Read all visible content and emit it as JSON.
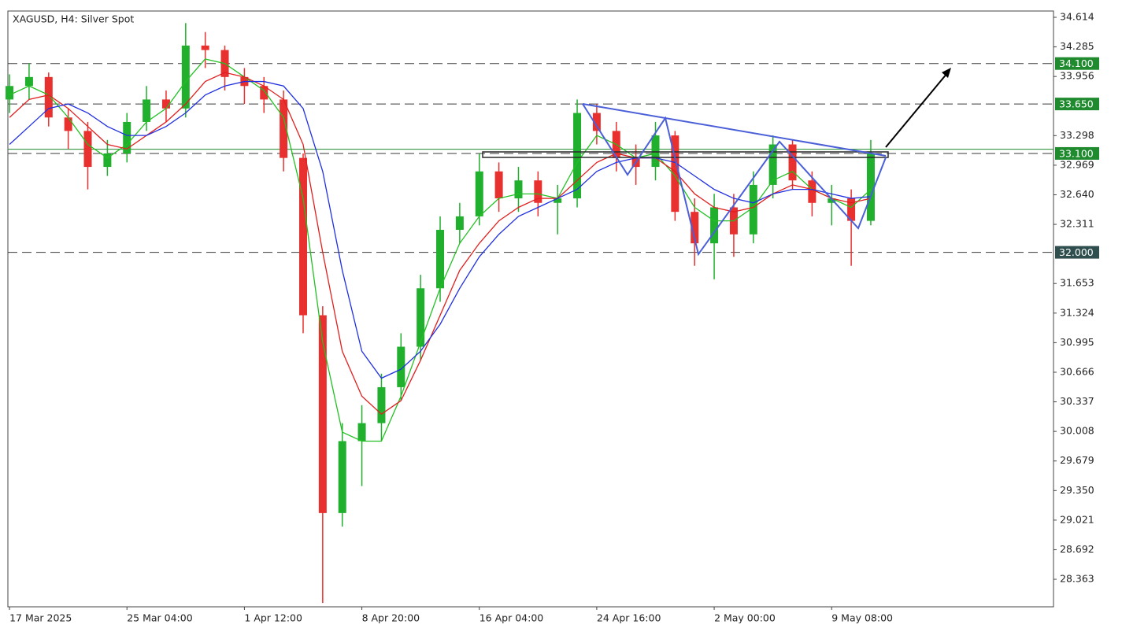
{
  "chart_data": {
    "type": "candlestick",
    "title": "XAGUSD, H4:  Silver Spot",
    "xlim": [
      -0.5,
      320
    ],
    "ylim": [
      28.057,
      34.684
    ],
    "xticks": [
      {
        "value": 0,
        "label": "17 Mar 2025"
      },
      {
        "value": 36,
        "label": "25 Mar 04:00"
      },
      {
        "value": 72,
        "label": "1 Apr 12:00"
      },
      {
        "value": 108,
        "label": "8 Apr 20:00"
      },
      {
        "value": 144,
        "label": "16 Apr 04:00"
      },
      {
        "value": 180,
        "label": "24 Apr 16:00"
      },
      {
        "value": 216,
        "label": "2 May 00:00"
      },
      {
        "value": 252,
        "label": "9 May 08:00"
      }
    ],
    "yticks": [
      34.614,
      34.285,
      33.956,
      33.298,
      32.969,
      {
        "value": 32.64,
        "label": "32.640"
      },
      32.311,
      31.653,
      31.324,
      30.995,
      30.666,
      30.337,
      30.008,
      29.679,
      {
        "value": 29.35,
        "label": "29.350"
      },
      29.021,
      28.692,
      28.363
    ],
    "levels": [
      {
        "value": 34.1,
        "label": "34.100",
        "color": "#1f8a2e"
      },
      {
        "value": 33.65,
        "label": "33.650",
        "color": "#1f8a2e"
      },
      {
        "value": 33.1,
        "label": "33.100",
        "color": "#1f8a2e"
      },
      {
        "value": 32,
        "label": "32.000",
        "color": "#2f4f4f"
      }
    ],
    "price_line": 33.146,
    "up_color": "#21b02e",
    "down_color": "#e8302e",
    "x": [
      0,
      6,
      12,
      18,
      24,
      30,
      36,
      42,
      48,
      54,
      60,
      66,
      72,
      78,
      84,
      90,
      96,
      102,
      108,
      114,
      120,
      126,
      132,
      138,
      144,
      150,
      156,
      162,
      168,
      174,
      180,
      186,
      192,
      198,
      204,
      210,
      216,
      222,
      228,
      234,
      240,
      246,
      252,
      258,
      264
    ],
    "open": [
      33.7,
      33.85,
      33.95,
      33.5,
      33.35,
      32.95,
      33.1,
      33.45,
      33.7,
      33.6,
      34.3,
      34.25,
      33.95,
      33.85,
      33.7,
      33.05,
      31.3,
      29.1,
      29.9,
      30.1,
      30.5,
      30.95,
      31.6,
      32.25,
      32.4,
      32.9,
      32.6,
      32.8,
      32.55,
      32.6,
      33.55,
      33.35,
      33.05,
      32.95,
      33.3,
      32.45,
      32.1,
      32.5,
      32.2,
      32.75,
      33.2,
      32.8,
      32.55,
      32.6,
      32.35
    ],
    "high": [
      33.98,
      34.1,
      34.0,
      33.6,
      33.45,
      33.25,
      33.55,
      33.85,
      33.8,
      34.55,
      34.45,
      34.3,
      34.05,
      33.95,
      33.8,
      33.1,
      31.4,
      30.1,
      30.3,
      30.65,
      31.1,
      31.75,
      32.4,
      32.55,
      33.1,
      33.0,
      32.95,
      32.9,
      32.75,
      33.7,
      33.65,
      33.45,
      33.2,
      33.45,
      33.35,
      32.6,
      32.65,
      32.65,
      32.9,
      33.3,
      33.25,
      32.9,
      32.75,
      32.7,
      33.25
    ],
    "low": [
      33.55,
      33.7,
      33.4,
      33.15,
      32.7,
      32.85,
      33.0,
      33.35,
      33.45,
      33.5,
      34.05,
      33.8,
      33.65,
      33.55,
      32.9,
      31.1,
      28.1,
      28.95,
      29.4,
      29.9,
      30.35,
      30.8,
      31.45,
      32.1,
      32.3,
      32.45,
      32.45,
      32.4,
      32.2,
      32.5,
      33.2,
      32.9,
      32.75,
      32.8,
      32.35,
      31.85,
      31.7,
      31.95,
      32.1,
      32.6,
      32.7,
      32.4,
      32.3,
      31.85,
      32.3
    ],
    "close": [
      33.85,
      33.95,
      33.5,
      33.35,
      32.95,
      33.1,
      33.45,
      33.7,
      33.6,
      34.3,
      34.25,
      33.95,
      33.85,
      33.7,
      33.05,
      31.3,
      29.1,
      29.9,
      30.1,
      30.5,
      30.95,
      31.6,
      32.25,
      32.4,
      32.9,
      32.6,
      32.8,
      32.55,
      32.6,
      33.55,
      33.35,
      33.05,
      32.95,
      33.3,
      32.45,
      32.1,
      32.5,
      32.2,
      32.75,
      33.2,
      32.8,
      32.55,
      32.6,
      32.35,
      33.1
    ],
    "ma": [
      {
        "color": "#22c022",
        "values": [
          33.75,
          33.85,
          33.75,
          33.5,
          33.2,
          33.05,
          33.2,
          33.45,
          33.6,
          33.9,
          34.15,
          34.1,
          33.95,
          33.8,
          33.5,
          32.6,
          31.0,
          30.0,
          29.9,
          29.9,
          30.4,
          31.0,
          31.6,
          32.1,
          32.4,
          32.6,
          32.65,
          32.65,
          32.6,
          33.0,
          33.3,
          33.2,
          33.05,
          33.1,
          32.85,
          32.5,
          32.35,
          32.35,
          32.5,
          32.8,
          32.9,
          32.7,
          32.6,
          32.5,
          32.7
        ]
      },
      {
        "color": "#e02020",
        "values": [
          33.5,
          33.7,
          33.75,
          33.6,
          33.4,
          33.2,
          33.15,
          33.3,
          33.45,
          33.65,
          33.9,
          34.0,
          33.95,
          33.85,
          33.7,
          33.2,
          32.0,
          30.9,
          30.4,
          30.2,
          30.35,
          30.8,
          31.3,
          31.8,
          32.1,
          32.35,
          32.5,
          32.6,
          32.6,
          32.8,
          33.0,
          33.1,
          33.05,
          33.05,
          32.9,
          32.65,
          32.5,
          32.45,
          32.5,
          32.65,
          32.75,
          32.7,
          32.6,
          32.55,
          32.6
        ]
      },
      {
        "color": "#2030e0",
        "values": [
          33.2,
          33.4,
          33.6,
          33.65,
          33.55,
          33.4,
          33.3,
          33.3,
          33.4,
          33.55,
          33.75,
          33.85,
          33.9,
          33.9,
          33.85,
          33.6,
          32.9,
          31.8,
          30.9,
          30.6,
          30.7,
          30.9,
          31.2,
          31.6,
          31.95,
          32.2,
          32.4,
          32.5,
          32.6,
          32.7,
          32.9,
          33.0,
          33.05,
          33.05,
          33.0,
          32.85,
          32.7,
          32.6,
          32.55,
          32.65,
          32.7,
          32.7,
          32.65,
          32.6,
          32.62
        ]
      }
    ]
  }
}
